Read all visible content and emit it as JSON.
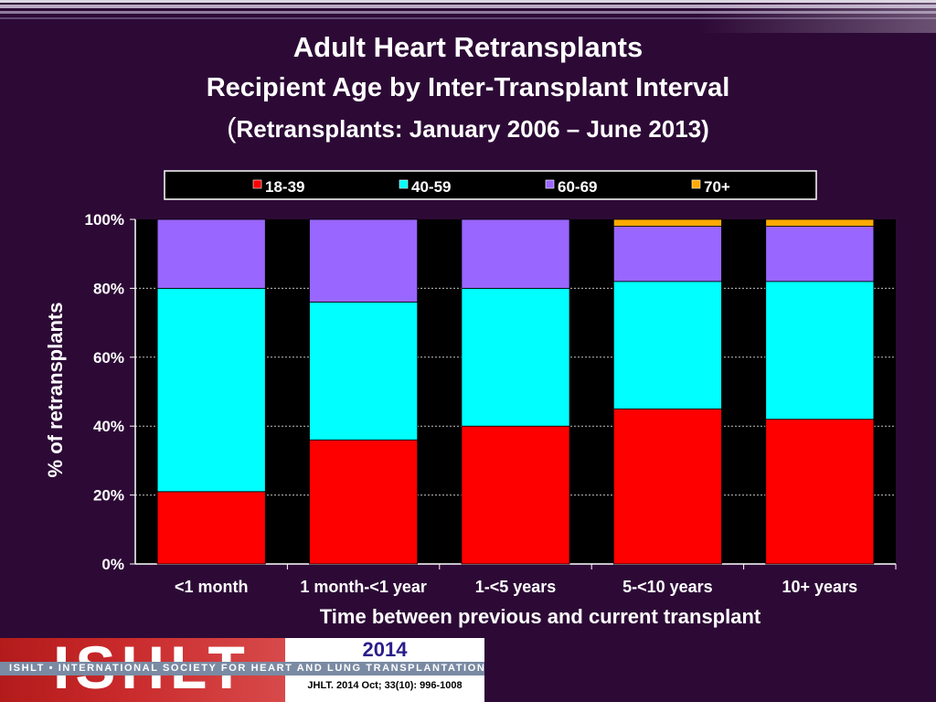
{
  "slide": {
    "title": "Adult Heart Retransplants",
    "subtitle": "Recipient Age by Inter-Transplant Interval",
    "subtitle2_paren_open": "(",
    "subtitle2": "Retransplants: January 2006 – June 2013)"
  },
  "chart_data": {
    "type": "bar",
    "stacked": true,
    "categories": [
      "<1 month",
      "1 month-<1 year",
      "1-<5 years",
      "5-<10 years",
      "10+ years"
    ],
    "series": [
      {
        "name": "18-39",
        "color": "#ff0000",
        "values": [
          21,
          36,
          40,
          45,
          42
        ]
      },
      {
        "name": "40-59",
        "color": "#00ffff",
        "values": [
          59,
          40,
          40,
          37,
          40
        ]
      },
      {
        "name": "60-69",
        "color": "#9966ff",
        "values": [
          20,
          24,
          20,
          16,
          16
        ]
      },
      {
        "name": "70+",
        "color": "#ffaa00",
        "values": [
          0,
          0,
          0,
          2,
          2
        ]
      }
    ],
    "xlabel": "Time between previous and current transplant",
    "ylabel": "% of retransplants",
    "ylim": [
      0,
      100
    ],
    "yticks": [
      "0%",
      "20%",
      "40%",
      "60%",
      "80%",
      "100%"
    ],
    "grid": true,
    "legend_position": "top"
  },
  "logo": {
    "word": "ISHLT",
    "band": "ISHLT • INTERNATIONAL SOCIETY FOR HEART AND LUNG TRANSPLANTATION",
    "year": "2014",
    "citation": "JHLT. 2014 Oct; 33(10): 996-1008"
  }
}
